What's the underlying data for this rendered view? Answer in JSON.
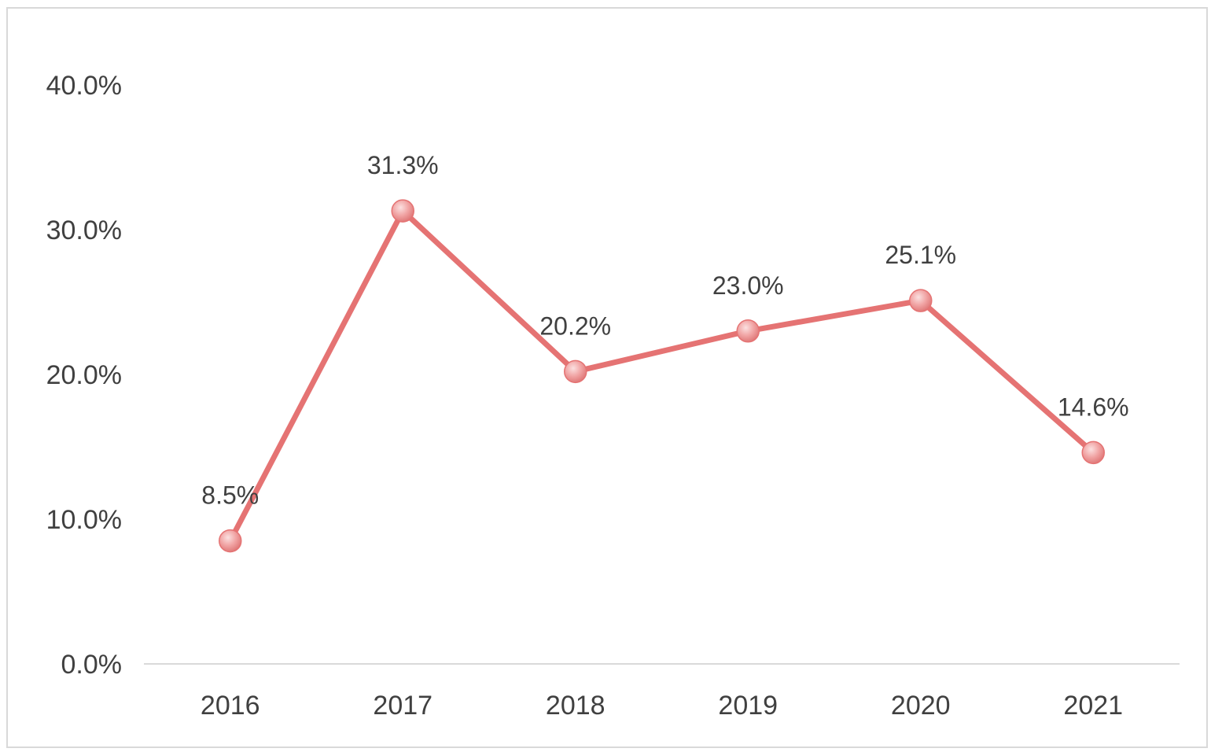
{
  "chart_data": {
    "type": "line",
    "categories": [
      "2016",
      "2017",
      "2018",
      "2019",
      "2020",
      "2021"
    ],
    "series": [
      {
        "values": [
          8.5,
          31.3,
          20.2,
          23.0,
          25.1,
          14.6
        ],
        "data_labels": [
          "8.5%",
          "31.3%",
          "20.2%",
          "23.0%",
          "25.1%",
          "14.6%"
        ],
        "color": "#e57373"
      }
    ],
    "ylim": [
      0,
      40
    ],
    "y_ticks": [
      0,
      10,
      20,
      30,
      40
    ],
    "y_tick_labels": [
      "0.0%",
      "10.0%",
      "20.0%",
      "30.0%",
      "40.0%"
    ],
    "grid": false,
    "axis_color": "#d9d9d9",
    "text_color": "#404040",
    "marker_color": "#f1a5a5",
    "title": "",
    "xlabel": "",
    "ylabel": ""
  }
}
